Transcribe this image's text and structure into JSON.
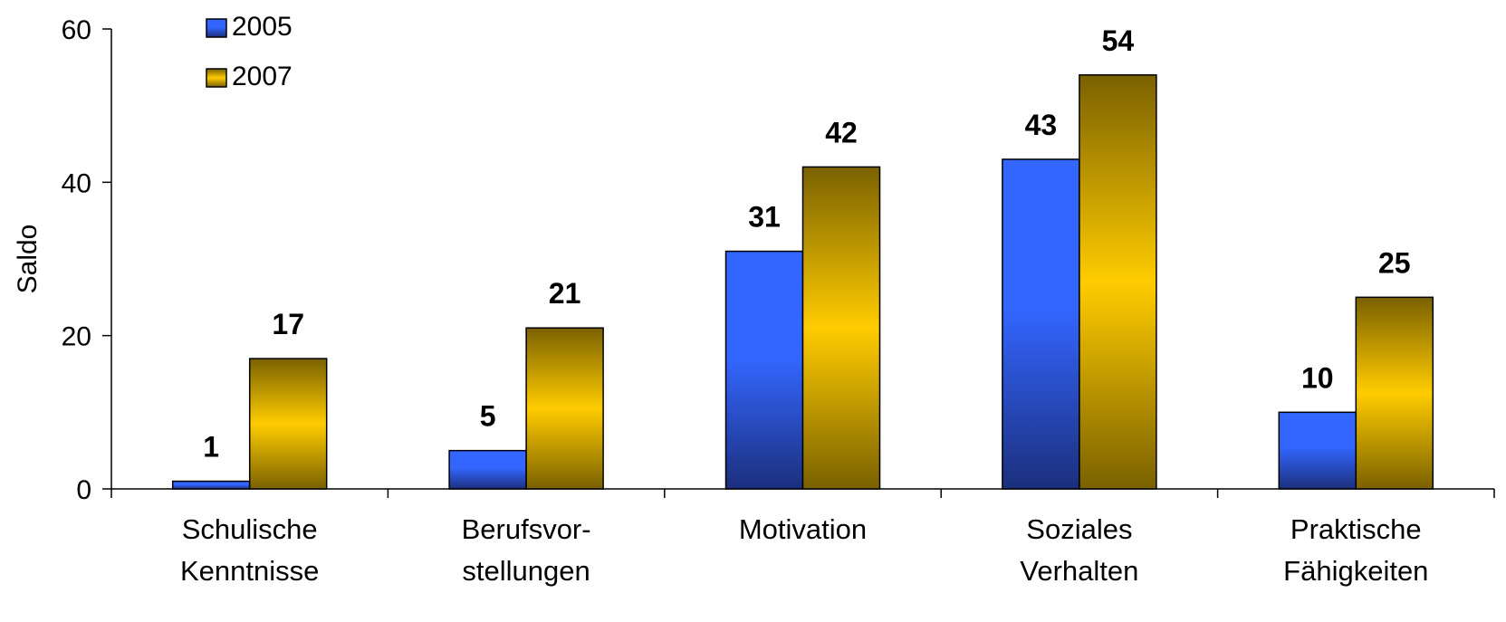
{
  "chart_data": {
    "type": "bar",
    "categories": [
      [
        "Schulische",
        "Kenntnisse"
      ],
      [
        "Berufsvor-",
        "stellungen"
      ],
      [
        "Motivation"
      ],
      [
        "Soziales",
        "Verhalten"
      ],
      [
        "Praktische",
        "Fähigkeiten"
      ]
    ],
    "series": [
      {
        "name": "2005",
        "values": [
          1,
          5,
          31,
          43,
          10
        ],
        "color": "#3366ff",
        "color_dark": "#1a2e7a"
      },
      {
        "name": "2007",
        "values": [
          17,
          21,
          42,
          54,
          25
        ],
        "color": "#ffcc00",
        "color_dark": "#7a6100"
      }
    ],
    "ylabel": "Saldo",
    "ylim": [
      0,
      60
    ],
    "yticks": [
      0,
      20,
      40,
      60
    ],
    "grid": false,
    "legend_position": "top-left",
    "data_labels": true
  }
}
